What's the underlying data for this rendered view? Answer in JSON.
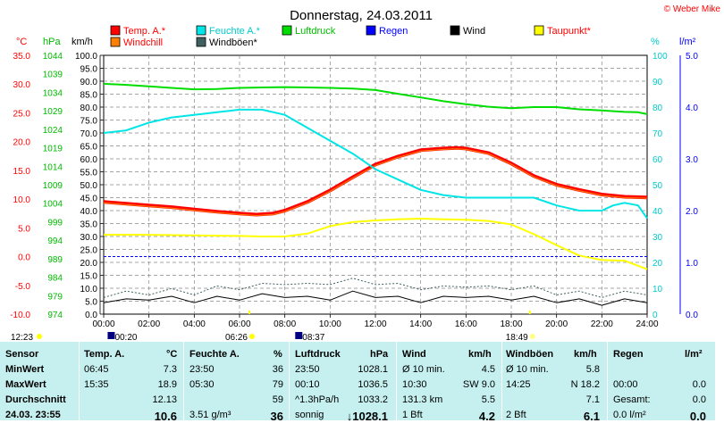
{
  "title": "Donnerstag, 24.03.2011",
  "copyright": "© Weber Mike",
  "legend": [
    {
      "label": "Temp. A.*",
      "color": "#ff0000",
      "textcolor": "#ff0000"
    },
    {
      "label": "Feuchte A.*",
      "color": "#00e5e5",
      "textcolor": "#00cccc"
    },
    {
      "label": "Luftdruck",
      "color": "#00dd00",
      "textcolor": "#00bb00"
    },
    {
      "label": "Regen",
      "color": "#0000ff",
      "textcolor": "#0000ff"
    },
    {
      "label": "Wind",
      "color": "#000000",
      "textcolor": "#000000"
    },
    {
      "label": "Taupunkt*",
      "color": "#ffff00",
      "textcolor": "#ff0000"
    },
    {
      "label": "Windchill",
      "color": "#ff8000",
      "textcolor": "#ff0000"
    },
    {
      "label": "Windböen*",
      "color": "#406060",
      "textcolor": "#000000"
    }
  ],
  "axes": {
    "temp": {
      "unit": "°C",
      "ticks": [
        "35.0",
        "30.0",
        "25.0",
        "20.0",
        "15.0",
        "10.0",
        "5.0",
        "0.0",
        "-5.0",
        "-10.0"
      ],
      "range": [
        -10,
        35
      ]
    },
    "pressure": {
      "unit": "hPa",
      "ticks": [
        "1044",
        "1039",
        "1034",
        "1029",
        "1024",
        "1019",
        "1014",
        "1009",
        "1004",
        "999",
        "994",
        "989",
        "984",
        "979",
        "974"
      ],
      "range": [
        974,
        1044
      ]
    },
    "wind": {
      "unit": "km/h",
      "ticks": [
        "100.0",
        "95.0",
        "90.0",
        "85.0",
        "80.0",
        "75.0",
        "70.0",
        "65.0",
        "60.0",
        "55.0",
        "50.0",
        "45.0",
        "40.0",
        "35.0",
        "30.0",
        "25.0",
        "20.0",
        "15.0",
        "10.0",
        "5.0",
        "0.0"
      ],
      "range": [
        0,
        100
      ]
    },
    "humidity": {
      "unit": "%",
      "ticks": [
        "100",
        "90",
        "80",
        "70",
        "60",
        "50",
        "40",
        "30",
        "20",
        "10",
        "0"
      ],
      "range": [
        0,
        100
      ]
    },
    "rain": {
      "unit": "l/m²",
      "ticks": [
        "5.0",
        "4.0",
        "3.0",
        "2.0",
        "1.0",
        "0.0"
      ],
      "range": [
        0,
        5
      ]
    },
    "time": {
      "ticks": [
        "00:00",
        "02:00",
        "04:00",
        "06:00",
        "08:00",
        "10:00",
        "12:00",
        "14:00",
        "16:00",
        "18:00",
        "20:00",
        "22:00",
        "24:00"
      ]
    }
  },
  "sun_markers": {
    "left_time": "12:23",
    "moonrise": "00:20",
    "sunrise": "06:26",
    "moonset": "08:37",
    "sunset": "18:49"
  },
  "chart_data": {
    "type": "line",
    "x_unit": "hour",
    "series": [
      {
        "name": "Temp. A.*",
        "axis": "temp",
        "color": "#ff0000",
        "x": [
          0,
          1,
          2,
          3,
          4,
          5,
          6,
          6.75,
          7.5,
          8,
          9,
          10,
          11,
          12,
          13,
          14,
          15,
          15.6,
          16,
          17,
          18,
          19,
          20,
          21,
          22,
          23,
          24
        ],
        "y": [
          9.5,
          9.2,
          8.9,
          8.6,
          8.2,
          7.8,
          7.5,
          7.3,
          7.5,
          8.0,
          9.5,
          11.5,
          13.8,
          16.0,
          17.4,
          18.5,
          18.8,
          18.9,
          18.8,
          18.0,
          16.2,
          14.0,
          12.5,
          11.6,
          10.8,
          10.4,
          10.3
        ]
      },
      {
        "name": "Taupunkt*",
        "axis": "temp",
        "color": "#ffff00",
        "x": [
          0,
          2,
          4,
          6,
          7,
          8,
          9,
          10,
          11,
          12,
          13,
          14,
          15,
          16,
          17,
          18,
          19,
          20,
          21,
          22,
          23,
          24
        ],
        "y": [
          3.8,
          3.8,
          3.7,
          3.6,
          3.5,
          3.5,
          4.0,
          5.3,
          6.0,
          6.3,
          6.5,
          6.6,
          6.5,
          6.4,
          6.2,
          5.6,
          3.9,
          2.0,
          0.2,
          -0.6,
          -0.7,
          -2.2
        ]
      },
      {
        "name": "Feuchte A.*",
        "axis": "humidity",
        "color": "#00e5e5",
        "x": [
          0,
          1,
          2,
          3,
          4,
          5,
          6,
          7,
          8,
          9,
          10,
          11,
          12,
          13,
          14,
          15,
          16,
          17,
          18,
          19,
          20,
          21,
          22,
          22.5,
          23,
          23.6,
          24
        ],
        "y": [
          70,
          71,
          74,
          76,
          77,
          78,
          79,
          79,
          77,
          72,
          67,
          62,
          56,
          52,
          48,
          46,
          45,
          45,
          45,
          45,
          42,
          40,
          40,
          42,
          43,
          42,
          37
        ]
      },
      {
        "name": "Luftdruck",
        "axis": "pressure",
        "color": "#00dd00",
        "x": [
          0,
          1,
          2,
          3,
          4,
          5,
          6,
          7,
          8,
          9,
          10,
          11,
          12,
          13,
          14,
          15,
          16,
          17,
          18,
          19,
          20,
          21,
          22,
          23,
          23.6,
          24
        ],
        "y": [
          1036.3,
          1036.0,
          1035.6,
          1035.2,
          1034.8,
          1034.9,
          1035.2,
          1035.3,
          1035.4,
          1035.3,
          1035.2,
          1035.0,
          1034.6,
          1033.6,
          1032.6,
          1031.6,
          1030.8,
          1030.1,
          1029.7,
          1030.0,
          1030.0,
          1029.4,
          1029.1,
          1028.7,
          1028.6,
          1028.1
        ]
      },
      {
        "name": "Wind",
        "axis": "wind",
        "color": "#000000",
        "x": [
          0,
          1,
          2,
          3,
          4,
          5,
          6,
          7,
          8,
          9,
          10,
          11,
          12,
          13,
          14,
          15,
          16,
          17,
          18,
          19,
          20,
          21,
          22,
          23,
          24
        ],
        "y": [
          5,
          5,
          6,
          6,
          5,
          6,
          6,
          7,
          7,
          6,
          6,
          8,
          7,
          6,
          5,
          6,
          7,
          6,
          6,
          6,
          5,
          5,
          4,
          5,
          5
        ]
      },
      {
        "name": "Windböen*",
        "axis": "wind",
        "color": "#406060",
        "x": [
          0,
          1,
          2,
          3,
          4,
          5,
          6,
          7,
          8,
          9,
          10,
          11,
          12,
          13,
          14,
          15,
          16,
          17,
          18,
          19,
          20,
          21,
          22,
          23,
          24
        ],
        "y": [
          7,
          8,
          8,
          9,
          8,
          10,
          10,
          11,
          12,
          11,
          12,
          13,
          12,
          11,
          10,
          10,
          11,
          10,
          10,
          10,
          8,
          8,
          7,
          8,
          8
        ]
      }
    ]
  },
  "stats": {
    "headers": {
      "sensor": "Sensor",
      "temp": "Temp. A.",
      "temp_unit": "°C",
      "hum": "Feuchte A.",
      "hum_unit": "%",
      "press": "Luftdruck",
      "press_unit": "hPa",
      "wind": "Wind",
      "wind_unit": "km/h",
      "gust": "Windböen",
      "gust_unit": "km/h",
      "rain": "Regen",
      "rain_unit": "l/m²"
    },
    "rows": [
      {
        "label": "MinWert",
        "temp_time": "06:45",
        "temp_val": "7.3",
        "hum_time": "23:50",
        "hum_val": "36",
        "press_time": "23:50",
        "press_val": "1028.1",
        "wind_time": "Ø 10 min.",
        "wind_val": "4.5",
        "gust_time": "Ø 10 min.",
        "gust_val": "5.8",
        "rain_time": "",
        "rain_val": ""
      },
      {
        "label": "MaxWert",
        "temp_time": "15:35",
        "temp_val": "18.9",
        "hum_time": "05:30",
        "hum_val": "79",
        "press_time": "00:10",
        "press_val": "1036.5",
        "wind_time": "10:30",
        "wind_val": "SW 9.0",
        "gust_time": "14:25",
        "gust_val": "N 18.2",
        "rain_time": "00:00",
        "rain_val": "0.0"
      },
      {
        "label": "Durchschnitt",
        "temp_time": "",
        "temp_val": "12.13",
        "hum_time": "",
        "hum_val": "59",
        "press_time": "^1.3hPa/h",
        "press_val": "1033.2",
        "wind_time": "131.3 km",
        "wind_val": "5.5",
        "gust_time": "",
        "gust_val": "7.1",
        "rain_time": "Gesamt:",
        "rain_val": "0.0"
      },
      {
        "label": "24.03. 23:55",
        "temp_time": "",
        "temp_val": "10.6",
        "hum_time": "3.51 g/m³",
        "hum_val": "36",
        "press_time": "sonnig",
        "press_val": "↓1028.1",
        "wind_time": "1 Bft",
        "wind_val": "4.2",
        "gust_time": "2 Bft",
        "gust_val": "6.1",
        "rain_time": "0.0 l/m²",
        "rain_val": "0.0"
      }
    ]
  }
}
